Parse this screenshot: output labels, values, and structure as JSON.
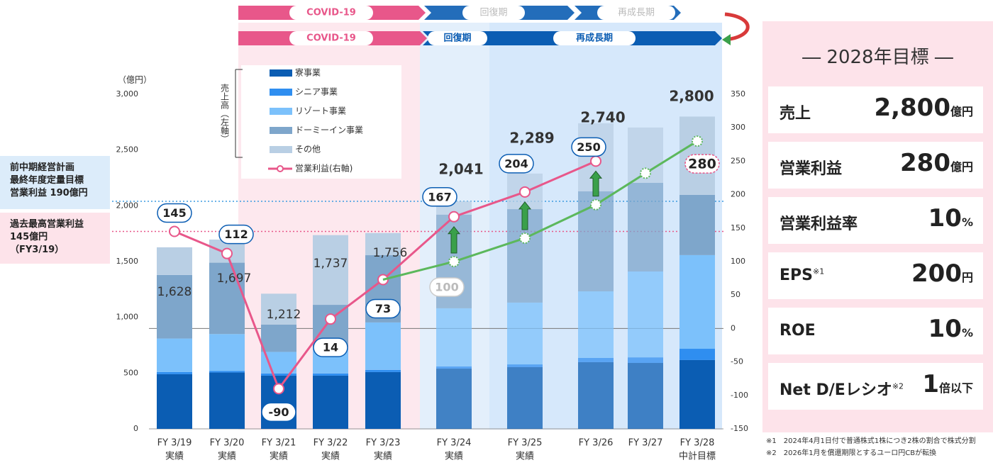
{
  "chart_data": {
    "type": "bar",
    "stacked": true,
    "unit_label": "（億円）",
    "axis_note": "売上高（左軸）",
    "categories": [
      "FY 3/19",
      "FY 3/20",
      "FY 3/21",
      "FY 3/22",
      "FY 3/23",
      "FY 3/24",
      "FY 3/25",
      "FY 3/26",
      "FY 3/27",
      "FY 3/28"
    ],
    "sublabels": [
      "実績",
      "実績",
      "実績",
      "実績",
      "実績",
      "実績",
      "実績",
      null,
      null,
      "中計目標"
    ],
    "series": [
      {
        "name": "寮事業",
        "color": "#0b5db3",
        "values": [
          490,
          505,
          477,
          477,
          509,
          540,
          553,
          598,
          591,
          617
        ]
      },
      {
        "name": "シニア事業",
        "color": "#2f8ef0",
        "values": [
          20,
          15,
          20,
          20,
          20,
          20,
          25,
          38,
          50,
          101
        ]
      },
      {
        "name": "リゾート事業",
        "color": "#7cc1fb",
        "values": [
          300,
          330,
          193,
          234,
          425,
          521,
          554,
          597,
          770,
          840
        ]
      },
      {
        "name": "ドーミーイン事業",
        "color": "#7ea6cb",
        "values": [
          570,
          640,
          245,
          381,
          603,
          840,
          838,
          897,
          795,
          540
        ]
      },
      {
        "name": "その他",
        "color": "#b9cfe4",
        "values": [
          248,
          207,
          277,
          625,
          199,
          120,
          319,
          610,
          496,
          702
        ]
      },
      {
        "name": "営業利益(右軸)",
        "type": "line",
        "axis": "y2",
        "color": "#e8578a",
        "values": [
          145,
          112,
          -90,
          14,
          73,
          167,
          204,
          250,
          null,
          null
        ]
      },
      {
        "type": "line",
        "axis": "y2",
        "color": "#5cb85c",
        "values": [
          null,
          null,
          null,
          null,
          73,
          100,
          135,
          185,
          232,
          280
        ]
      }
    ],
    "totals": [
      1628,
      1697,
      1212,
      1737,
      1756,
      2041,
      2289,
      2740,
      null,
      2800
    ],
    "total_labels": [
      "1,628",
      "1,697",
      "1,212",
      "1,737",
      "1,756",
      "2,041",
      "2,289",
      "2,740",
      null,
      "2,800"
    ],
    "ylim": [
      0,
      3000
    ],
    "yticks": [
      0,
      500,
      {
        "value": 1000,
        "label": "1,000"
      },
      {
        "value": 1500,
        "label": "1,500"
      },
      {
        "value": 2000,
        "label": "2,000"
      },
      {
        "value": 2500,
        "label": "2,500"
      },
      {
        "value": 3000,
        "label": "3,000"
      }
    ],
    "y2lim": [
      -150,
      350
    ],
    "y2ticks": [
      -150,
      -100,
      -50,
      0,
      50,
      100,
      150,
      200,
      250,
      300,
      350
    ],
    "annotations": [
      {
        "lines": [
          "前中期経営計画",
          "最終年度定量目標",
          "営業利益 190億円"
        ],
        "value": 190,
        "color": "#dcecfa",
        "line": "#3b9be0"
      },
      {
        "lines": [
          "過去最高営業利益",
          "145億円",
          "（FY3/19）"
        ],
        "value": 145,
        "color": "#fde3ea",
        "line": "#e8578a"
      }
    ]
  },
  "phases": [
    "COVID-19",
    "回復期",
    "再成長期"
  ],
  "targets": {
    "title": "― 2028年目標 ―",
    "rows": [
      {
        "label": "売上",
        "value": "2,800",
        "unit": "億円"
      },
      {
        "label": "営業利益",
        "value": "280",
        "unit": "億円"
      },
      {
        "label": "営業利益率",
        "value": "10",
        "unit": "%"
      },
      {
        "label": "EPS",
        "sup": "※1",
        "value": "200",
        "unit": "円"
      },
      {
        "label": "ROE",
        "value": "10",
        "unit": "%"
      },
      {
        "label": "Net D/Eレシオ",
        "sup": "※2",
        "value": "1",
        "unit": "倍以下"
      }
    ]
  },
  "footnotes": [
    "※1　2024年4月1日付で普通株式1株につき2株の割合で株式分割",
    "※2　2026年1月を償還期限とするユーロ円CBが転換"
  ]
}
